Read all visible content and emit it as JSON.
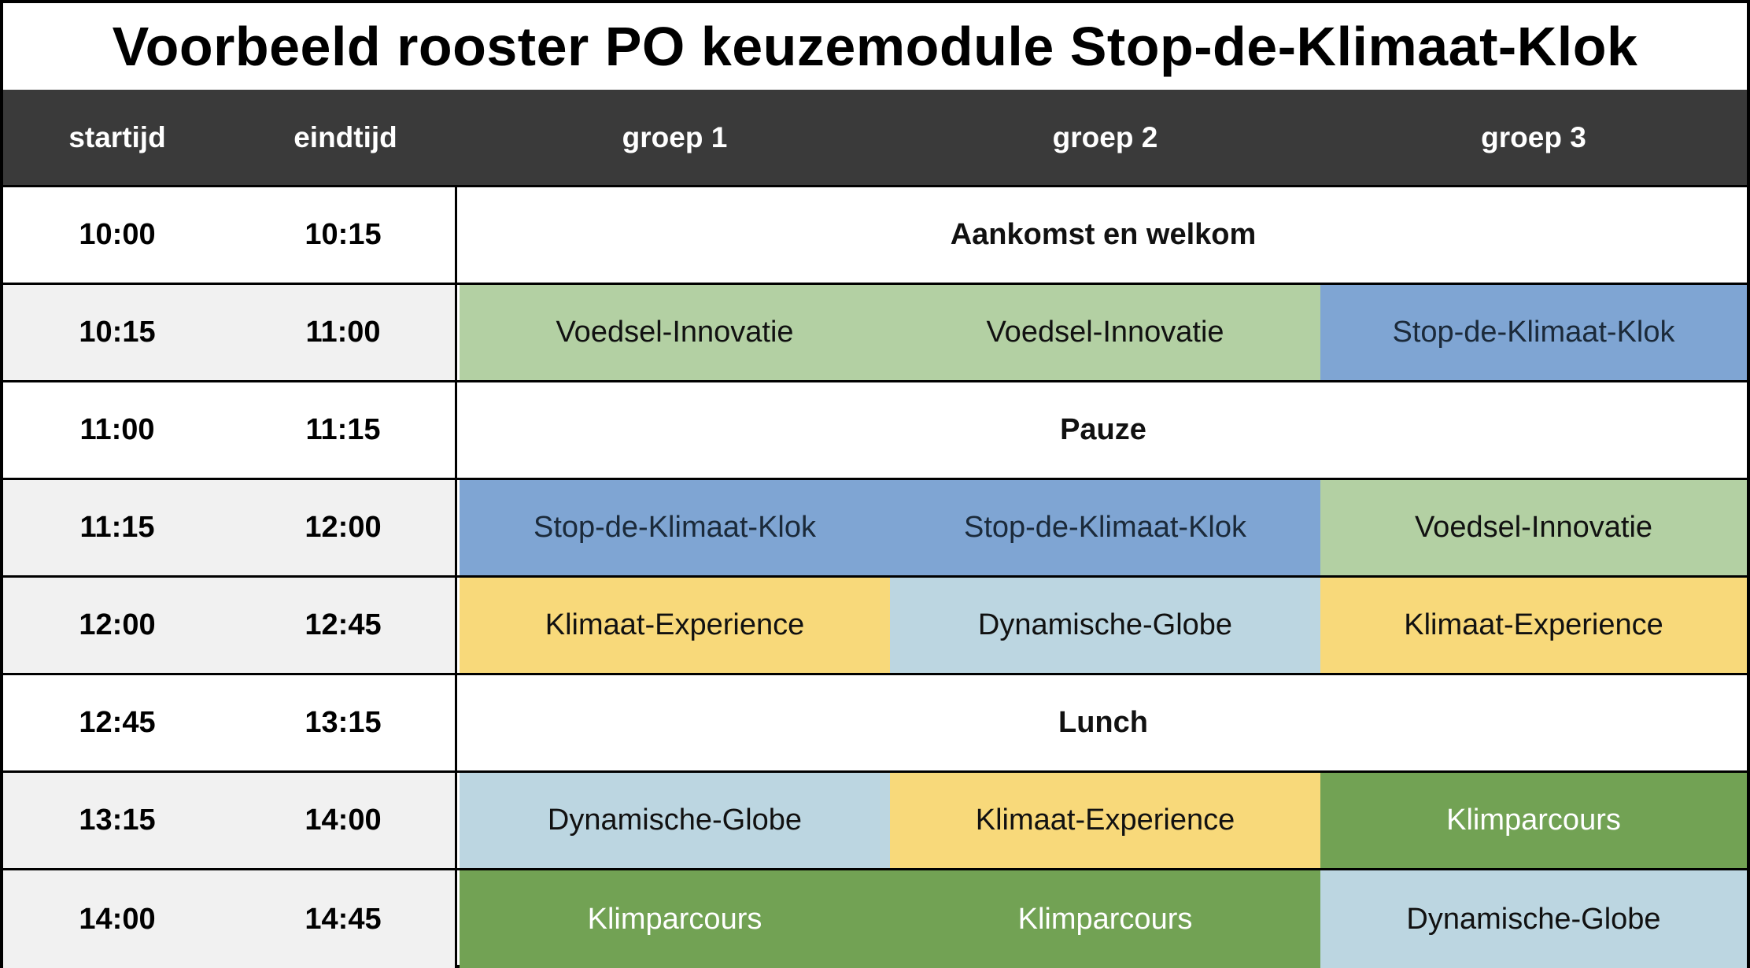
{
  "title": "Voorbeeld rooster PO keuzemodule  Stop-de-Klimaat-Klok",
  "headers": {
    "start": "startijd",
    "end": "eindtijd",
    "groups": [
      "groep 1",
      "groep 2",
      "groep 3"
    ]
  },
  "colors": {
    "header_bg": "#3a3a3a",
    "Voedsel-Innovatie": "#b3d0a3",
    "Stop-de-Klimaat-Klok": "#7fa5d3",
    "Klimaat-Experience": "#f8d97a",
    "Dynamische-Globe": "#bcd6e1",
    "Klimparcours": "#72a254"
  },
  "rows": [
    {
      "start": "10:00",
      "end": "10:15",
      "span": "Aankomst en welkom"
    },
    {
      "start": "10:15",
      "end": "11:00",
      "cells": [
        "Voedsel-Innovatie",
        "Voedsel-Innovatie",
        "Stop-de-Klimaat-Klok"
      ]
    },
    {
      "start": "11:00",
      "end": "11:15",
      "span": "Pauze"
    },
    {
      "start": "11:15",
      "end": "12:00",
      "cells": [
        "Stop-de-Klimaat-Klok",
        "Stop-de-Klimaat-Klok",
        "Voedsel-Innovatie"
      ]
    },
    {
      "start": "12:00",
      "end": "12:45",
      "cells": [
        "Klimaat-Experience",
        "Dynamische-Globe",
        "Klimaat-Experience"
      ]
    },
    {
      "start": "12:45",
      "end": "13:15",
      "span": "Lunch"
    },
    {
      "start": "13:15",
      "end": "14:00",
      "cells": [
        "Dynamische-Globe",
        "Klimaat-Experience",
        "Klimparcours"
      ]
    },
    {
      "start": "14:00",
      "end": "14:45",
      "cells": [
        "Klimparcours",
        "Klimparcours",
        "Dynamische-Globe"
      ]
    }
  ]
}
